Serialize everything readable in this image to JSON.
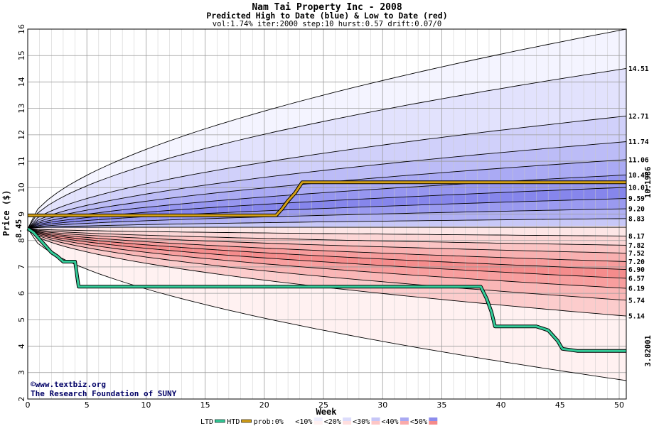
{
  "chart_data": {
    "type": "area",
    "title": "Nam Tai Property Inc - 2008",
    "subtitle": "Predicted High to Date (blue) &  Low to Date (red)",
    "params": "vol:1.74% iter:2000 step:10 hurst:0.57 drift:0.07/0",
    "xlabel": "Week",
    "ylabel": "Price ($)",
    "xlim": [
      0,
      50.6
    ],
    "ylim": [
      2,
      16
    ],
    "xticks": [
      0,
      5,
      10,
      15,
      20,
      25,
      30,
      35,
      40,
      45,
      50
    ],
    "yticks": [
      2,
      3,
      4,
      5,
      6,
      7,
      8,
      9,
      10,
      11,
      12,
      13,
      14,
      15,
      16
    ],
    "grid": true,
    "start_price": 8.45,
    "start_label": "8.45",
    "high_bands": [
      {
        "end": 16.0,
        "label": ""
      },
      {
        "end": 14.51,
        "label": "14.51"
      },
      {
        "end": 12.71,
        "label": "12.71"
      },
      {
        "end": 11.74,
        "label": "11.74"
      },
      {
        "end": 11.06,
        "label": "11.06"
      },
      {
        "end": 10.48,
        "label": "10.48"
      },
      {
        "end": 10.01,
        "label": "10.01"
      },
      {
        "end": 9.59,
        "label": "9.59"
      },
      {
        "end": 9.2,
        "label": "9.20"
      },
      {
        "end": 8.83,
        "label": "8.83"
      }
    ],
    "low_bands": [
      {
        "end": 8.17,
        "label": "8.17"
      },
      {
        "end": 7.82,
        "label": "7.82"
      },
      {
        "end": 7.52,
        "label": "7.52"
      },
      {
        "end": 7.2,
        "label": "7.20"
      },
      {
        "end": 6.9,
        "label": "6.90"
      },
      {
        "end": 6.57,
        "label": "6.57"
      },
      {
        "end": 6.19,
        "label": "6.19"
      },
      {
        "end": 5.74,
        "label": "5.74"
      },
      {
        "end": 5.14,
        "label": "5.14"
      },
      {
        "end": 2.7,
        "label": ""
      }
    ],
    "series": [
      {
        "name": "HTD",
        "color": "#d4a017",
        "x": [
          0,
          21,
          21.5,
          22,
          22.6,
          23.2,
          50.6
        ],
        "y": [
          8.95,
          8.95,
          9.2,
          9.5,
          9.8,
          10.2,
          10.2
        ]
      },
      {
        "name": "LTD",
        "color": "#33cc99",
        "x": [
          0,
          0.5,
          1,
          1.5,
          2,
          2.5,
          3,
          4,
          4.3,
          38.3,
          38.8,
          39.2,
          39.5,
          43,
          44,
          44.8,
          45.2,
          46.5,
          50.6
        ],
        "y": [
          8.45,
          8.3,
          8.05,
          7.8,
          7.55,
          7.4,
          7.2,
          7.2,
          6.25,
          6.25,
          5.8,
          5.3,
          4.75,
          4.75,
          4.6,
          4.2,
          3.9,
          3.82,
          3.82
        ]
      }
    ],
    "htd_value": "10.1986",
    "ltd_value": "3.82001",
    "credits": [
      "©www.textbiz.org",
      "The Research Foundation of SUNY"
    ],
    "legend": {
      "ltd": "LTD",
      "htd": "HTD",
      "items": [
        "prob:0%",
        "<10%",
        "<20%",
        "<30%",
        "<40%",
        "<50%"
      ],
      "high_colors": [
        "#ffffff",
        "#eeeefe",
        "#dcdcfb",
        "#c6c6f7",
        "#a9a9f2",
        "#8c8cec"
      ],
      "low_colors": [
        "#ffffff",
        "#fff0f0",
        "#ffdede",
        "#fdc6c6",
        "#faaaaa",
        "#f58a8a"
      ]
    },
    "colors": {
      "htd": "#d4a017",
      "ltd": "#33cc99",
      "grid": "#9a9a9a",
      "htd_text": "#8b7a00",
      "ltd_text": "#1f8a2a",
      "credit": "#000066"
    }
  }
}
